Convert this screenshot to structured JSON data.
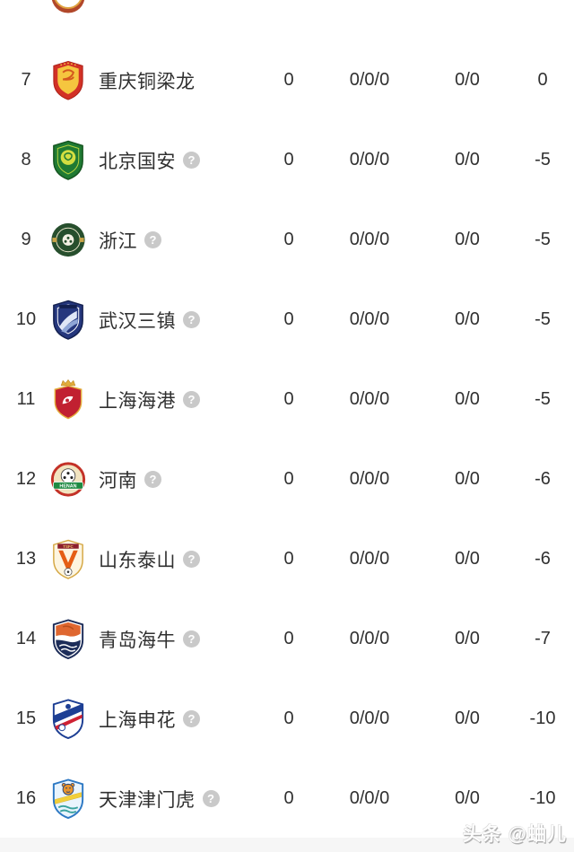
{
  "colors": {
    "background": "#ffffff",
    "text": "#303030",
    "help_icon_bg": "#c9c9c9",
    "footer_strip": "#f6f6f6"
  },
  "icons": {
    "help_glyph": "?"
  },
  "watermark": {
    "text": "头条 @蛐儿"
  },
  "table": {
    "rows": [
      {
        "rank": "7",
        "team": "重庆铜梁龙",
        "points": "0",
        "record": "0/0/0",
        "goals": "0/0",
        "diff": "0",
        "has_info": false,
        "logo": "chongqing-tongliang-long"
      },
      {
        "rank": "8",
        "team": "北京国安",
        "points": "0",
        "record": "0/0/0",
        "goals": "0/0",
        "diff": "-5",
        "has_info": true,
        "logo": "beijing-guoan"
      },
      {
        "rank": "9",
        "team": "浙江",
        "points": "0",
        "record": "0/0/0",
        "goals": "0/0",
        "diff": "-5",
        "has_info": true,
        "logo": "zhejiang"
      },
      {
        "rank": "10",
        "team": "武汉三镇",
        "points": "0",
        "record": "0/0/0",
        "goals": "0/0",
        "diff": "-5",
        "has_info": true,
        "logo": "wuhan-three-towns"
      },
      {
        "rank": "11",
        "team": "上海海港",
        "points": "0",
        "record": "0/0/0",
        "goals": "0/0",
        "diff": "-5",
        "has_info": true,
        "logo": "shanghai-port"
      },
      {
        "rank": "12",
        "team": "河南",
        "points": "0",
        "record": "0/0/0",
        "goals": "0/0",
        "diff": "-6",
        "has_info": true,
        "logo": "henan"
      },
      {
        "rank": "13",
        "team": "山东泰山",
        "points": "0",
        "record": "0/0/0",
        "goals": "0/0",
        "diff": "-6",
        "has_info": true,
        "logo": "shandong-taishan"
      },
      {
        "rank": "14",
        "team": "青岛海牛",
        "points": "0",
        "record": "0/0/0",
        "goals": "0/0",
        "diff": "-7",
        "has_info": true,
        "logo": "qingdao-hainiu"
      },
      {
        "rank": "15",
        "team": "上海申花",
        "points": "0",
        "record": "0/0/0",
        "goals": "0/0",
        "diff": "-10",
        "has_info": true,
        "logo": "shanghai-shenhua"
      },
      {
        "rank": "16",
        "team": "天津津门虎",
        "points": "0",
        "record": "0/0/0",
        "goals": "0/0",
        "diff": "-10",
        "has_info": true,
        "logo": "tianjin-jinmen-tiger"
      }
    ]
  }
}
